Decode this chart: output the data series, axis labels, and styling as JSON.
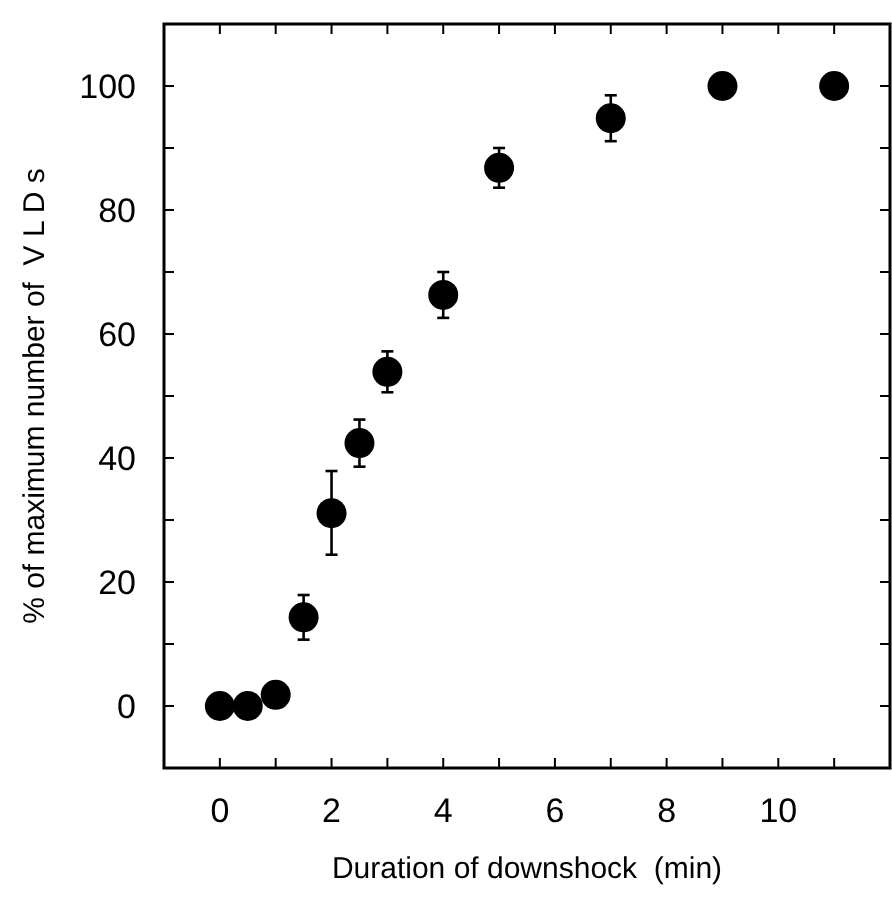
{
  "chart_data": {
    "type": "scatter",
    "xlabel": "Duration of downshock  (min)",
    "ylabel": "% of maximum number of  V L D s",
    "x": [
      0,
      0.5,
      1,
      1.5,
      2,
      2.5,
      3,
      4,
      5,
      7,
      9,
      11
    ],
    "values": [
      0,
      0,
      1.8,
      14.3,
      31.1,
      42.4,
      53.9,
      66.3,
      86.8,
      94.8,
      100,
      100
    ],
    "errors": [
      null,
      null,
      null,
      3.6,
      [
        24.4,
        37.9
      ],
      3.8,
      3.3,
      3.7,
      3.2,
      3.7,
      null,
      null
    ],
    "color": "#000000",
    "marker": "circle",
    "xlim": [
      -1,
      12
    ],
    "ylim": [
      -10,
      110
    ],
    "xticks": [
      0,
      {
        "value": 1,
        "label": null
      },
      2,
      {
        "value": 3,
        "label": null
      },
      4,
      {
        "value": 5,
        "label": null
      },
      6,
      {
        "value": 7,
        "label": null
      },
      8,
      {
        "value": 9,
        "label": null
      },
      10,
      {
        "value": 11,
        "label": null
      }
    ],
    "yticks": [
      0,
      {
        "value": 10,
        "label": null
      },
      20,
      {
        "value": 30,
        "label": null
      },
      40,
      {
        "value": 50,
        "label": null
      },
      60,
      {
        "value": 70,
        "label": null
      },
      80,
      {
        "value": 90,
        "label": null
      },
      100
    ],
    "grid": false
  }
}
